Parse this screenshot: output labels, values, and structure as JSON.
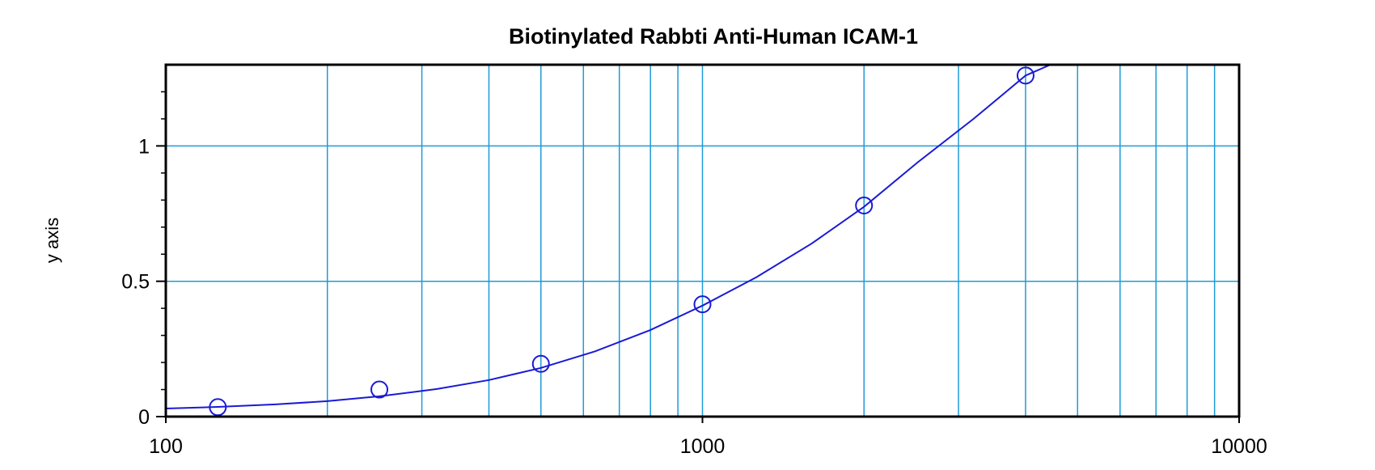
{
  "chart_data": {
    "type": "scatter",
    "title": "Biotinylated Rabbti Anti-Human ICAM-1",
    "xlabel": "",
    "ylabel": "y axis",
    "x_scale": "log",
    "xlim": [
      100,
      10000
    ],
    "ylim": [
      0,
      1.3
    ],
    "x_ticks": [
      100,
      1000,
      10000
    ],
    "x_tick_labels": [
      "100",
      "1000",
      "10000"
    ],
    "y_ticks": [
      0,
      0.5,
      1
    ],
    "y_tick_labels": [
      "0",
      "0.5",
      "1"
    ],
    "grid": true,
    "series": [
      {
        "marker": "open-circle",
        "x": [
          125,
          250,
          500,
          1000,
          2000,
          4000
        ],
        "y": [
          0.035,
          0.1,
          0.195,
          0.415,
          0.78,
          1.26
        ]
      }
    ],
    "fit_curve": {
      "style": "line",
      "x": [
        100,
        125,
        160,
        200,
        250,
        320,
        400,
        500,
        630,
        800,
        1000,
        1260,
        1600,
        2000,
        2520,
        3200,
        4000,
        4450
      ],
      "y": [
        0.03,
        0.036,
        0.045,
        0.057,
        0.075,
        0.102,
        0.135,
        0.18,
        0.241,
        0.32,
        0.41,
        0.515,
        0.64,
        0.775,
        0.94,
        1.1,
        1.26,
        1.3
      ]
    },
    "colors": {
      "series": "#1a1ad6",
      "grid": "#1e9bd7",
      "axes": "#000000"
    }
  }
}
